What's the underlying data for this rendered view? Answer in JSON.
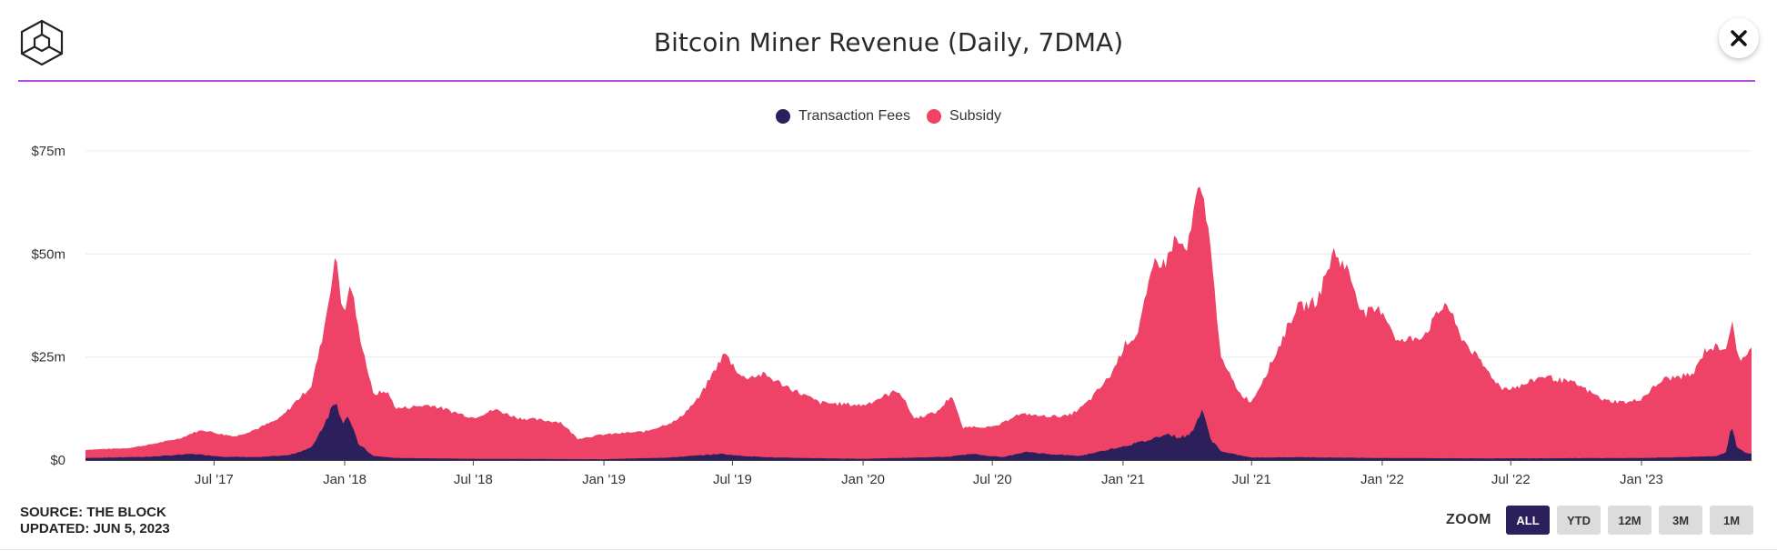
{
  "header": {
    "title": "Bitcoin Miner Revenue (Daily, 7DMA)"
  },
  "legend": [
    {
      "label": "Transaction Fees",
      "color": "#2b1f5c"
    },
    {
      "label": "Subsidy",
      "color": "#ee4266"
    }
  ],
  "footer": {
    "source": "SOURCE: THE BLOCK",
    "updated": "UPDATED: JUN 5, 2023"
  },
  "zoom": {
    "label": "ZOOM",
    "buttons": [
      "ALL",
      "YTD",
      "12M",
      "3M",
      "1M"
    ],
    "active": "ALL"
  },
  "chart_data": {
    "type": "area",
    "stacked": true,
    "title": "Bitcoin Miner Revenue (Daily, 7DMA)",
    "ylim": [
      0,
      75
    ],
    "y_unit": "$m",
    "y_ticks": [
      {
        "value": 0,
        "label": "$0"
      },
      {
        "value": 25,
        "label": "$25m"
      },
      {
        "value": 50,
        "label": "$50m"
      },
      {
        "value": 75,
        "label": "$75m"
      }
    ],
    "x_range": [
      "2017-01-01",
      "2023-06-05"
    ],
    "x_ticks": [
      {
        "date": "2017-07-01",
        "label": "Jul '17"
      },
      {
        "date": "2018-01-01",
        "label": "Jan '18"
      },
      {
        "date": "2018-07-01",
        "label": "Jul '18"
      },
      {
        "date": "2019-01-01",
        "label": "Jan '19"
      },
      {
        "date": "2019-07-01",
        "label": "Jul '19"
      },
      {
        "date": "2020-01-01",
        "label": "Jan '20"
      },
      {
        "date": "2020-07-01",
        "label": "Jul '20"
      },
      {
        "date": "2021-01-01",
        "label": "Jan '21"
      },
      {
        "date": "2021-07-01",
        "label": "Jul '21"
      },
      {
        "date": "2022-01-01",
        "label": "Jan '22"
      },
      {
        "date": "2022-07-01",
        "label": "Jul '22"
      },
      {
        "date": "2023-01-01",
        "label": "Jan '23"
      }
    ],
    "grid": true,
    "legend_position": "top-center",
    "series": [
      {
        "name": "Transaction Fees",
        "color": "#2b1f5c",
        "points": [
          [
            "2017-01-01",
            0.5
          ],
          [
            "2017-04-01",
            0.8
          ],
          [
            "2017-06-01",
            1.5
          ],
          [
            "2017-07-15",
            0.8
          ],
          [
            "2017-09-01",
            0.7
          ],
          [
            "2017-10-15",
            1.2
          ],
          [
            "2017-11-15",
            3.0
          ],
          [
            "2017-12-01",
            8.0
          ],
          [
            "2017-12-20",
            15.0
          ],
          [
            "2017-12-28",
            9.0
          ],
          [
            "2018-01-05",
            11.0
          ],
          [
            "2018-01-20",
            4.0
          ],
          [
            "2018-02-10",
            1.0
          ],
          [
            "2018-03-15",
            0.5
          ],
          [
            "2018-07-01",
            0.3
          ],
          [
            "2019-01-01",
            0.2
          ],
          [
            "2019-04-01",
            0.6
          ],
          [
            "2019-06-15",
            1.5
          ],
          [
            "2019-07-15",
            1.0
          ],
          [
            "2019-09-01",
            0.6
          ],
          [
            "2020-01-01",
            0.3
          ],
          [
            "2020-05-01",
            0.8
          ],
          [
            "2020-06-01",
            1.5
          ],
          [
            "2020-07-15",
            0.7
          ],
          [
            "2020-08-20",
            2.0
          ],
          [
            "2020-09-15",
            1.5
          ],
          [
            "2020-11-01",
            1.0
          ],
          [
            "2021-01-05",
            3.5
          ],
          [
            "2021-02-10",
            5.0
          ],
          [
            "2021-03-01",
            6.5
          ],
          [
            "2021-03-20",
            5.5
          ],
          [
            "2021-04-05",
            6.0
          ],
          [
            "2021-04-22",
            12.0
          ],
          [
            "2021-05-05",
            5.0
          ],
          [
            "2021-05-20",
            2.0
          ],
          [
            "2021-07-01",
            0.6
          ],
          [
            "2021-09-01",
            0.7
          ],
          [
            "2022-01-01",
            0.5
          ],
          [
            "2022-06-01",
            0.4
          ],
          [
            "2023-01-01",
            0.5
          ],
          [
            "2023-04-15",
            0.9
          ],
          [
            "2023-05-01",
            2.0
          ],
          [
            "2023-05-08",
            9.0
          ],
          [
            "2023-05-15",
            3.0
          ],
          [
            "2023-05-25",
            2.0
          ],
          [
            "2023-06-05",
            1.5
          ]
        ]
      },
      {
        "name": "Subsidy",
        "color": "#ee4266",
        "points": [
          [
            "2017-01-01",
            2.0
          ],
          [
            "2017-03-01",
            2.2
          ],
          [
            "2017-05-15",
            4.0
          ],
          [
            "2017-06-15",
            6.0
          ],
          [
            "2017-08-01",
            5.0
          ],
          [
            "2017-09-01",
            7.0
          ],
          [
            "2017-10-01",
            9.0
          ],
          [
            "2017-10-20",
            12.0
          ],
          [
            "2017-11-15",
            15.0
          ],
          [
            "2017-12-01",
            22.0
          ],
          [
            "2017-12-20",
            35.0
          ],
          [
            "2018-01-01",
            25.0
          ],
          [
            "2018-01-10",
            34.0
          ],
          [
            "2018-01-25",
            25.0
          ],
          [
            "2018-02-10",
            15.0
          ],
          [
            "2018-03-01",
            16.0
          ],
          [
            "2018-03-15",
            12.0
          ],
          [
            "2018-05-01",
            13.0
          ],
          [
            "2018-07-01",
            10.0
          ],
          [
            "2018-08-01",
            12.0
          ],
          [
            "2018-09-01",
            10.0
          ],
          [
            "2018-11-01",
            9.0
          ],
          [
            "2018-11-25",
            5.0
          ],
          [
            "2019-01-01",
            6.0
          ],
          [
            "2019-03-01",
            6.5
          ],
          [
            "2019-04-15",
            9.0
          ],
          [
            "2019-05-15",
            14.0
          ],
          [
            "2019-06-20",
            24.5
          ],
          [
            "2019-07-15",
            19.0
          ],
          [
            "2019-08-15",
            20.0
          ],
          [
            "2019-10-01",
            16.0
          ],
          [
            "2019-11-01",
            13.5
          ],
          [
            "2020-01-01",
            13.0
          ],
          [
            "2020-02-20",
            16.5
          ],
          [
            "2020-03-13",
            9.5
          ],
          [
            "2020-04-15",
            11.0
          ],
          [
            "2020-05-05",
            15.0
          ],
          [
            "2020-05-20",
            6.5
          ],
          [
            "2020-07-01",
            7.0
          ],
          [
            "2020-08-01",
            9.5
          ],
          [
            "2020-09-01",
            9.0
          ],
          [
            "2020-10-15",
            9.5
          ],
          [
            "2020-11-15",
            13.0
          ],
          [
            "2020-12-15",
            18.0
          ],
          [
            "2021-01-05",
            25.0
          ],
          [
            "2021-01-20",
            26.0
          ],
          [
            "2021-02-15",
            43.0
          ],
          [
            "2021-03-01",
            41.0
          ],
          [
            "2021-03-15",
            48.0
          ],
          [
            "2021-04-01",
            45.0
          ],
          [
            "2021-04-15",
            55.0
          ],
          [
            "2021-05-01",
            50.0
          ],
          [
            "2021-05-20",
            22.0
          ],
          [
            "2021-06-15",
            15.0
          ],
          [
            "2021-07-01",
            13.5
          ],
          [
            "2021-08-01",
            24.0
          ],
          [
            "2021-09-01",
            36.0
          ],
          [
            "2021-10-01",
            38.0
          ],
          [
            "2021-10-25",
            50.0
          ],
          [
            "2021-11-15",
            45.0
          ],
          [
            "2021-12-05",
            35.0
          ],
          [
            "2022-01-01",
            36.0
          ],
          [
            "2022-01-24",
            28.0
          ],
          [
            "2022-03-01",
            30.0
          ],
          [
            "2022-04-01",
            38.0
          ],
          [
            "2022-04-20",
            30.0
          ],
          [
            "2022-05-12",
            25.0
          ],
          [
            "2022-06-18",
            17.0
          ],
          [
            "2022-07-15",
            17.5
          ],
          [
            "2022-08-15",
            20.0
          ],
          [
            "2022-10-01",
            18.0
          ],
          [
            "2022-11-10",
            14.0
          ],
          [
            "2022-12-15",
            13.5
          ],
          [
            "2023-01-01",
            14.5
          ],
          [
            "2023-02-01",
            19.0
          ],
          [
            "2023-03-15",
            20.0
          ],
          [
            "2023-04-01",
            26.0
          ],
          [
            "2023-04-15",
            26.5
          ],
          [
            "2023-05-08",
            25.0
          ],
          [
            "2023-05-20",
            22.0
          ],
          [
            "2023-06-05",
            25.5
          ]
        ]
      }
    ]
  }
}
